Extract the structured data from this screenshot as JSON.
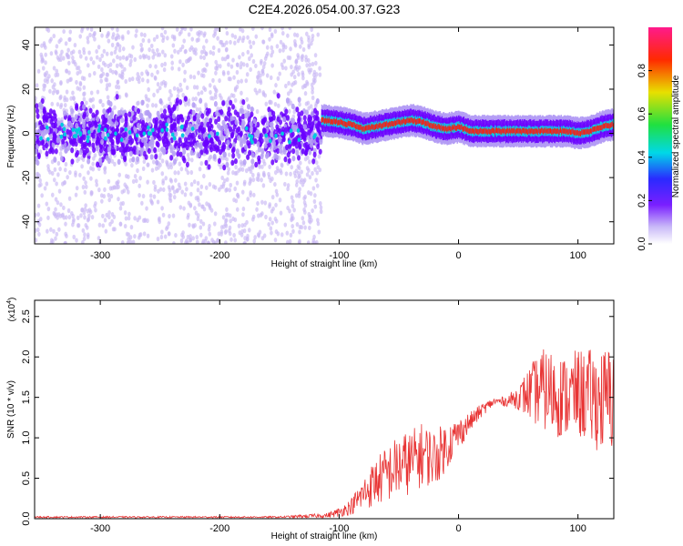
{
  "title": "C2E4.2026.054.00.37.G23",
  "colors": {
    "snr_line": "#e83434",
    "axis": "#000000",
    "colormap": [
      "#ffffff",
      "#b49df5",
      "#6a00ff",
      "#2020ff",
      "#00e0e0",
      "#20e020",
      "#e0e000",
      "#ff2000",
      "#ff1493"
    ]
  },
  "chart_data": [
    {
      "type": "heatmap",
      "title": "C2E4.2026.054.00.37.G23",
      "xlabel": "Height of straight line (km)",
      "ylabel": "Frequency (Hz)",
      "xlim": [
        -355,
        130
      ],
      "ylim": [
        -50,
        48
      ],
      "xticks": [
        -300,
        -200,
        -100,
        0,
        100
      ],
      "yticks": [
        -40,
        -20,
        0,
        20,
        40
      ],
      "colorbar": {
        "label": "Normalized spectral amplitude",
        "range": [
          0.0,
          1.0
        ],
        "ticks": [
          0.0,
          0.2,
          0.4,
          0.6,
          0.8
        ]
      },
      "description_values": {
        "noisy_region_x": [
          -355,
          -115
        ],
        "signal_track_freq_hz": [
          [
            -115,
            6
          ],
          [
            -100,
            5
          ],
          [
            -90,
            4
          ],
          [
            -80,
            2
          ],
          [
            -70,
            3
          ],
          [
            -60,
            4
          ],
          [
            -50,
            5
          ],
          [
            -40,
            6
          ],
          [
            -30,
            5
          ],
          [
            -20,
            3
          ],
          [
            -10,
            2
          ],
          [
            0,
            3
          ],
          [
            10,
            1
          ],
          [
            20,
            1
          ],
          [
            30,
            1
          ],
          [
            40,
            1
          ],
          [
            50,
            1
          ],
          [
            60,
            1
          ],
          [
            70,
            1
          ],
          [
            80,
            1
          ],
          [
            90,
            1
          ],
          [
            100,
            0
          ],
          [
            110,
            1
          ],
          [
            120,
            3
          ],
          [
            130,
            4
          ]
        ]
      }
    },
    {
      "type": "line",
      "xlabel": "Height of straight line (km)",
      "ylabel": "SNR (10 * v/v)",
      "yscale_label": "(x10",
      "yscale_exp": "4",
      "xlim": [
        -355,
        130
      ],
      "ylim": [
        0,
        2.7
      ],
      "xticks": [
        -300,
        -200,
        -100,
        0,
        100
      ],
      "yticks": [
        0.0,
        0.5,
        1.0,
        1.5,
        2.0,
        2.5
      ],
      "ytick_labels": [
        "0.0",
        "0.5",
        "1.0",
        "1.5",
        "2.0",
        "2.5"
      ],
      "series": [
        {
          "x": [
            -355,
            -300,
            -250,
            -200,
            -150,
            -110,
            -100,
            -90,
            -80,
            -70,
            -60,
            -50,
            -40,
            -30,
            -20,
            -10,
            0,
            10,
            20,
            30,
            40,
            50,
            60,
            70,
            80,
            90,
            100,
            110,
            120,
            130
          ],
          "y": [
            0.02,
            0.02,
            0.02,
            0.02,
            0.02,
            0.04,
            0.08,
            0.15,
            0.3,
            0.45,
            0.55,
            0.65,
            0.7,
            0.8,
            0.75,
            0.9,
            1.05,
            1.2,
            1.35,
            1.45,
            1.45,
            1.5,
            1.55,
            1.6,
            1.55,
            1.5,
            1.55,
            1.5,
            1.45,
            1.5
          ],
          "spread": [
            0.01,
            0.01,
            0.01,
            0.01,
            0.01,
            0.03,
            0.06,
            0.1,
            0.2,
            0.3,
            0.35,
            0.4,
            0.4,
            0.4,
            0.35,
            0.3,
            0.2,
            0.12,
            0.08,
            0.05,
            0.06,
            0.15,
            0.35,
            0.5,
            0.55,
            0.5,
            0.55,
            0.6,
            0.65,
            0.7
          ]
        }
      ]
    }
  ]
}
